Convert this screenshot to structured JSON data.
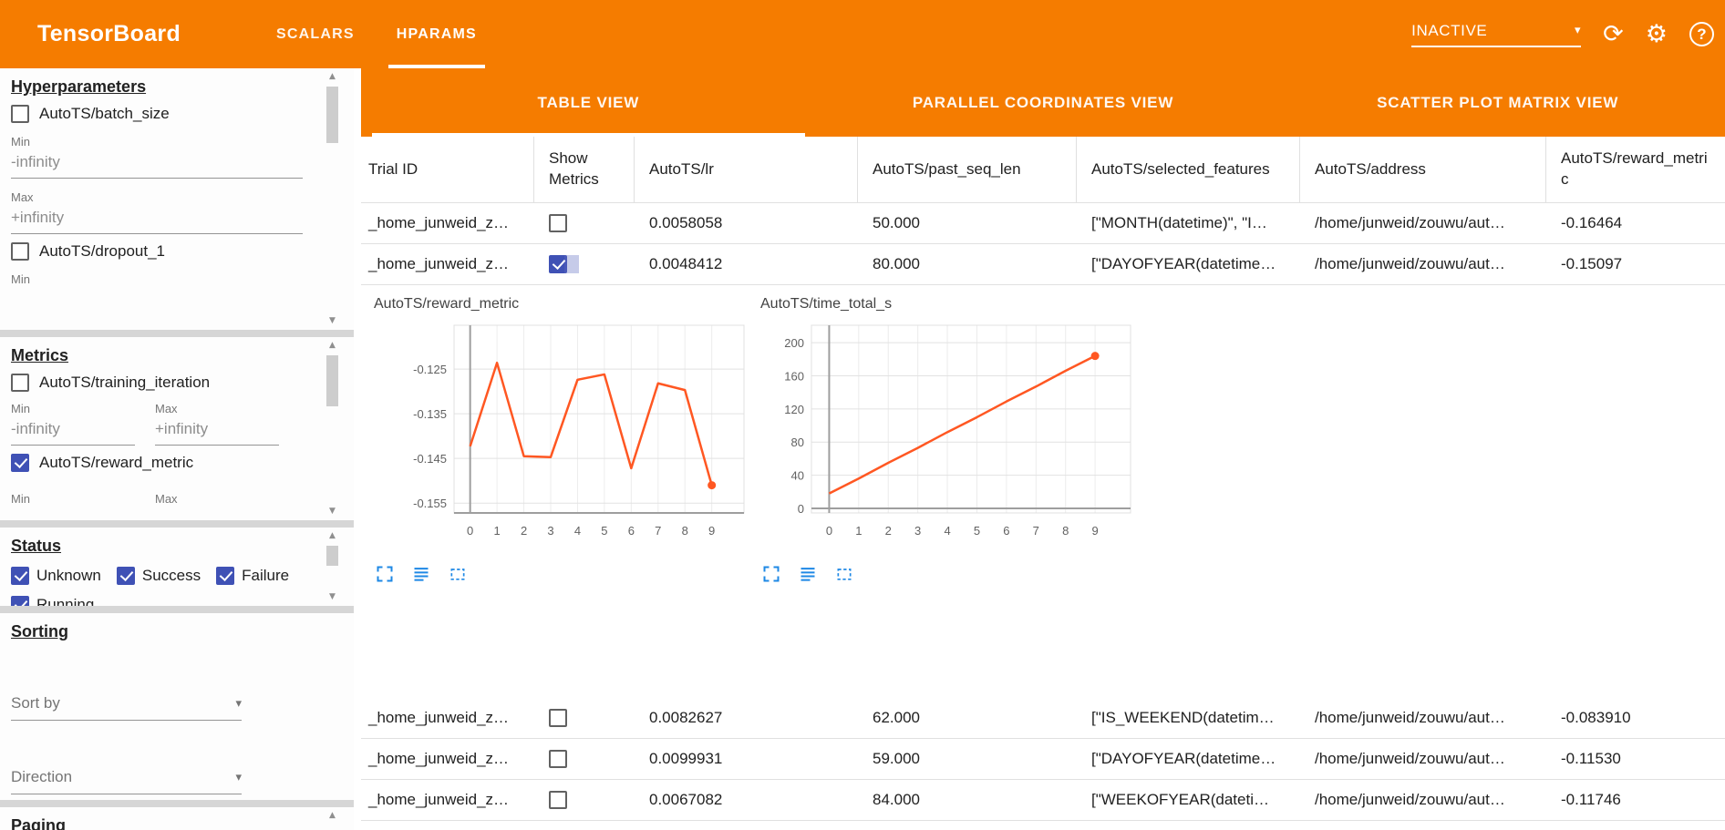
{
  "colors": {
    "header_orange": "#f57c00",
    "chart_line": "#ff5722",
    "checkbox_blue": "#3f51b5",
    "chart_icon_blue": "#1e88e5"
  },
  "header": {
    "title": "TensorBoard",
    "nav_tabs": [
      {
        "label": "SCALARS",
        "active": false
      },
      {
        "label": "HPARAMS",
        "active": true
      }
    ],
    "run_selector": {
      "value": "INACTIVE"
    },
    "icons": {
      "refresh": "refresh-icon",
      "settings": "settings-icon",
      "help": "help-icon"
    },
    "help_glyph": "?",
    "refresh_glyph": "⟳",
    "settings_glyph": "⚙"
  },
  "sidebar": {
    "hyperparameters": {
      "heading": "Hyperparameters",
      "item1": {
        "label": "AutoTS/batch_size",
        "checked": false
      },
      "min_label": "Min",
      "min_value": "-infinity",
      "max_label": "Max",
      "max_value": "+infinity",
      "item2": {
        "label": "AutoTS/dropout_1",
        "checked": false
      },
      "min2_label": "Min"
    },
    "metrics": {
      "heading": "Metrics",
      "item1": {
        "label": "AutoTS/training_iteration",
        "checked": false
      },
      "min_label": "Min",
      "max_label": "Max",
      "min_value": "-infinity",
      "max_value": "+infinity",
      "item2": {
        "label": "AutoTS/reward_metric",
        "checked": true
      },
      "min2_label": "Min",
      "max2_label": "Max"
    },
    "status": {
      "heading": "Status",
      "options": [
        {
          "label": "Unknown",
          "checked": true
        },
        {
          "label": "Success",
          "checked": true
        },
        {
          "label": "Failure",
          "checked": true
        },
        {
          "label": "Running",
          "checked": true
        }
      ]
    },
    "sorting": {
      "heading": "Sorting",
      "sort_by_placeholder": "Sort by",
      "direction_placeholder": "Direction"
    },
    "paging": {
      "heading": "Paging"
    }
  },
  "view_tabs": [
    {
      "label": "TABLE VIEW",
      "active": true
    },
    {
      "label": "PARALLEL COORDINATES VIEW",
      "active": false
    },
    {
      "label": "SCATTER PLOT MATRIX VIEW",
      "active": false
    }
  ],
  "table": {
    "columns": [
      "Trial ID",
      "Show Metrics",
      "AutoTS/lr",
      "AutoTS/past_seq_len",
      "AutoTS/selected_features",
      "AutoTS/address",
      "AutoTS/reward_metric"
    ],
    "top_rows": [
      {
        "trial_id": "_home_junweid_z…",
        "show_metrics": false,
        "lr": "0.0058058",
        "past_seq_len": "50.000",
        "selected_features": "[\"MONTH(datetime)\", \"I…",
        "address": "/home/junweid/zouwu/aut…",
        "reward_metric": "-0.16464"
      },
      {
        "trial_id": "_home_junweid_z…",
        "show_metrics": true,
        "lr": "0.0048412",
        "past_seq_len": "80.000",
        "selected_features": "[\"DAYOFYEAR(datetime…",
        "address": "/home/junweid/zouwu/aut…",
        "reward_metric": "-0.15097"
      }
    ],
    "bottom_rows": [
      {
        "trial_id": "_home_junweid_z…",
        "show_metrics": false,
        "lr": "0.0082627",
        "past_seq_len": "62.000",
        "selected_features": "[\"IS_WEEKEND(datetim…",
        "address": "/home/junweid/zouwu/aut…",
        "reward_metric": "-0.083910"
      },
      {
        "trial_id": "_home_junweid_z…",
        "show_metrics": false,
        "lr": "0.0099931",
        "past_seq_len": "59.000",
        "selected_features": "[\"DAYOFYEAR(datetime…",
        "address": "/home/junweid/zouwu/aut…",
        "reward_metric": "-0.11530"
      },
      {
        "trial_id": "_home_junweid_z…",
        "show_metrics": false,
        "lr": "0.0067082",
        "past_seq_len": "84.000",
        "selected_features": "[\"WEEKOFYEAR(dateti…",
        "address": "/home/junweid/zouwu/aut…",
        "reward_metric": "-0.11746"
      }
    ]
  },
  "chart_tools": [
    "fullscreen-icon",
    "data-table-icon",
    "fit-domain-icon"
  ],
  "chart_data": [
    {
      "type": "line",
      "title": "AutoTS/reward_metric",
      "x": [
        0,
        1,
        2,
        3,
        4,
        5,
        6,
        7,
        8,
        9
      ],
      "values": [
        -0.1423,
        -0.1236,
        -0.1445,
        -0.1447,
        -0.1274,
        -0.1262,
        -0.1472,
        -0.1282,
        -0.1297,
        -0.151
      ],
      "xticks": [
        0,
        1,
        2,
        3,
        4,
        5,
        6,
        7,
        8,
        9
      ],
      "yticks": [
        -0.125,
        -0.135,
        -0.145,
        -0.155
      ],
      "ytick_labels": [
        "-0.125",
        "-0.135",
        "-0.145",
        "-0.155"
      ],
      "xlim": [
        -0.6,
        10.2
      ],
      "ylim": [
        -0.1572,
        -0.1152
      ],
      "baseline": -0.1572,
      "grid": true,
      "legend": "none",
      "marker_on_last": true,
      "line_color": "#ff5722",
      "y_label_width": 90
    },
    {
      "type": "line",
      "title": "AutoTS/time_total_s",
      "x": [
        0,
        1,
        2,
        3,
        4,
        5,
        6,
        7,
        8,
        9
      ],
      "values": [
        18,
        36,
        55,
        73,
        92,
        110,
        129,
        147,
        166,
        184
      ],
      "xticks": [
        0,
        1,
        2,
        3,
        4,
        5,
        6,
        7,
        8,
        9
      ],
      "yticks": [
        0,
        40,
        80,
        120,
        160,
        200
      ],
      "ytick_labels": [
        "0",
        "40",
        "80",
        "120",
        "160",
        "200"
      ],
      "xlim": [
        -0.6,
        10.2
      ],
      "ylim": [
        -5.5,
        221
      ],
      "baseline": 0,
      "grid": true,
      "legend": "none",
      "marker_on_last": true,
      "line_color": "#ff5722",
      "y_label_width": 58
    }
  ]
}
